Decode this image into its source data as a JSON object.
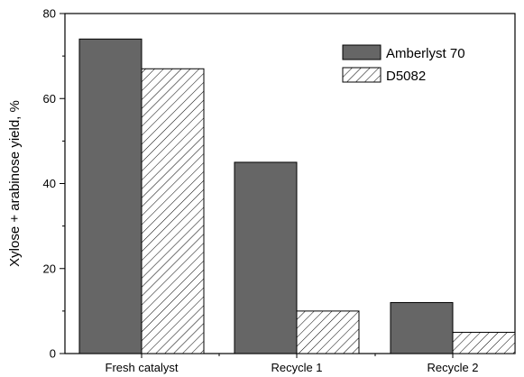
{
  "chart_data": {
    "type": "bar",
    "categories": [
      "Fresh catalyst",
      "Recycle 1",
      "Recycle 2"
    ],
    "series": [
      {
        "name": "Amberlyst 70",
        "values": [
          74,
          45,
          12
        ],
        "fill": "#666666",
        "pattern": "solid"
      },
      {
        "name": "D5082",
        "values": [
          67,
          10,
          5
        ],
        "fill": "#ffffff",
        "pattern": "hatch"
      }
    ],
    "title": "",
    "xlabel": "",
    "ylabel": "Xylose + arabinose yield, %",
    "ylim": [
      0,
      80
    ],
    "yticks": [
      0,
      20,
      40,
      60,
      80
    ],
    "grid": false,
    "legend_position": "top-right"
  }
}
